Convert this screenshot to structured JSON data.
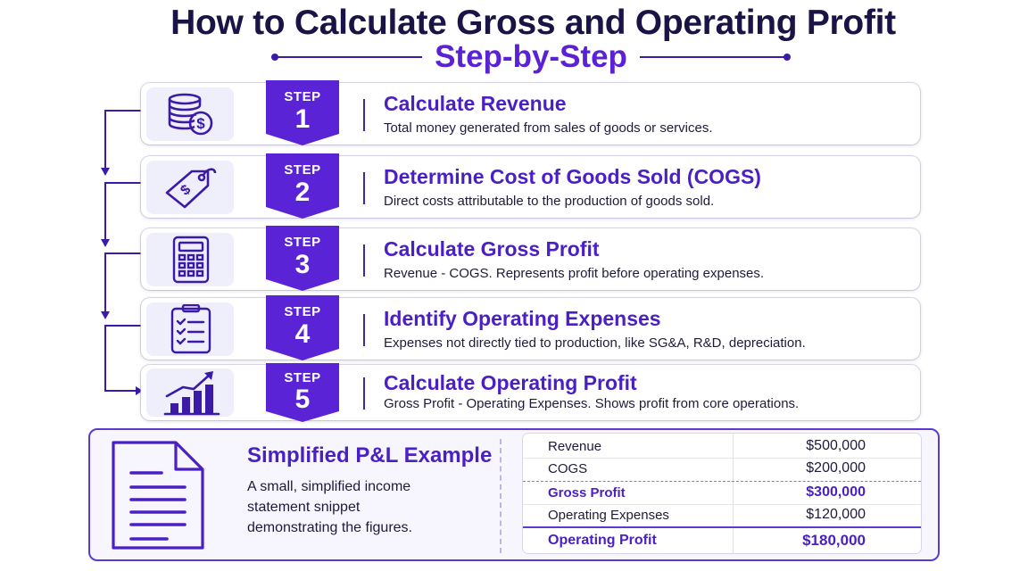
{
  "header": {
    "title": "How to Calculate Gross and Operating Profit",
    "subtitle": "Step-by-Step"
  },
  "colors": {
    "accent": "#5b21d6",
    "navy": "#1a1446",
    "badge": "#5a23d6",
    "icon": "#3b1aa8"
  },
  "steps": [
    {
      "step_word": "STEP",
      "number": "1",
      "icon": "coins-dollar-icon",
      "title": "Calculate Revenue",
      "desc": "Total money generated from sales of goods or services."
    },
    {
      "step_word": "STEP",
      "number": "2",
      "icon": "price-tag-icon",
      "title": "Determine Cost of Goods Sold (COGS)",
      "desc": "Direct costs attributable to the production of goods sold."
    },
    {
      "step_word": "STEP",
      "number": "3",
      "icon": "calculator-icon",
      "title": "Calculate Gross Profit",
      "desc": "Revenue - COGS. Represents profit before operating expenses."
    },
    {
      "step_word": "STEP",
      "number": "4",
      "icon": "clipboard-checklist-icon",
      "title": "Identify Operating Expenses",
      "desc": "Expenses not directly tied to production, like SG&A, R&D, depreciation."
    },
    {
      "step_word": "STEP",
      "number": "5",
      "icon": "growth-chart-icon",
      "title": "Calculate Operating Profit",
      "desc": "Gross Profit - Operating Expenses. Shows profit from core operations."
    }
  ],
  "pl_example": {
    "icon": "document-icon",
    "title": "Simplified P&L Example",
    "desc": "A small, simplified income statement snippet demonstrating the figures.",
    "rows": [
      {
        "label": "Revenue",
        "value": "$500,000"
      },
      {
        "label": "COGS",
        "value": "$200,000"
      },
      {
        "label": "Gross Profit",
        "value": "$300,000"
      },
      {
        "label": "Operating Expenses",
        "value": "$120,000"
      },
      {
        "label": "Operating Profit",
        "value": "$180,000"
      }
    ]
  }
}
